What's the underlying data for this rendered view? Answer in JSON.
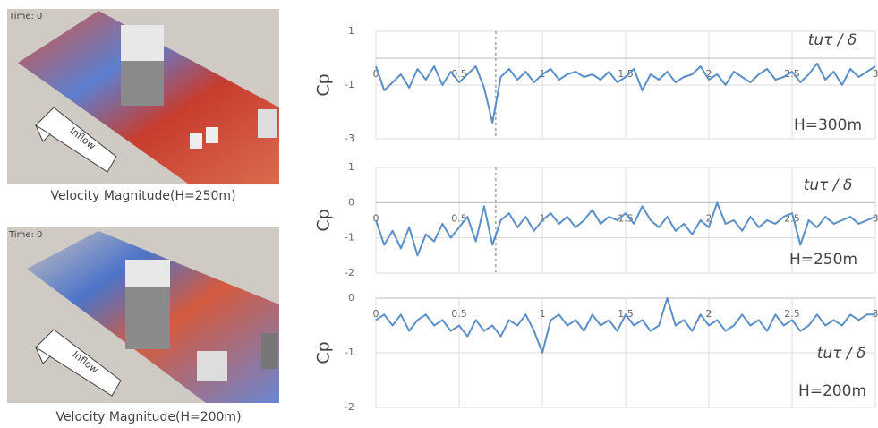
{
  "images": [
    {
      "time_label": "Time: 0",
      "arrow_label": "Inflow",
      "caption": "Velocity Magnitude(H=250m)"
    },
    {
      "time_label": "Time: 0",
      "arrow_label": "Inflow",
      "caption": "Velocity Magnitude(H=200m)"
    }
  ],
  "chart_data": [
    {
      "type": "line",
      "y_label": "Cp",
      "x_label": "tuτ / δ",
      "annotation": "H=300m",
      "color": "#5b8fc7",
      "grid": true,
      "xlim": [
        0,
        3
      ],
      "xticks": [
        0,
        0.5,
        1,
        1.5,
        2,
        2.5,
        3
      ],
      "ylim": [
        -3,
        1
      ],
      "yticks": [
        1,
        -1,
        -3
      ],
      "vline": 0.72,
      "x": [
        0,
        0.05,
        0.1,
        0.15,
        0.2,
        0.25,
        0.3,
        0.35,
        0.4,
        0.45,
        0.5,
        0.55,
        0.6,
        0.65,
        0.7,
        0.75,
        0.8,
        0.85,
        0.9,
        0.95,
        1,
        1.05,
        1.1,
        1.15,
        1.2,
        1.25,
        1.3,
        1.35,
        1.4,
        1.45,
        1.5,
        1.55,
        1.6,
        1.65,
        1.7,
        1.75,
        1.8,
        1.85,
        1.9,
        1.95,
        2,
        2.05,
        2.1,
        2.15,
        2.2,
        2.25,
        2.3,
        2.35,
        2.4,
        2.45,
        2.5,
        2.55,
        2.6,
        2.65,
        2.7,
        2.75,
        2.8,
        2.85,
        2.9,
        2.95,
        3
      ],
      "values": [
        -0.3,
        -1.2,
        -0.9,
        -0.6,
        -1.1,
        -0.4,
        -0.8,
        -0.3,
        -1.0,
        -0.5,
        -0.9,
        -0.6,
        -0.3,
        -1.1,
        -2.4,
        -0.7,
        -0.4,
        -0.8,
        -0.5,
        -0.9,
        -0.6,
        -0.4,
        -0.8,
        -0.6,
        -0.5,
        -0.7,
        -0.6,
        -0.8,
        -0.5,
        -0.9,
        -0.7,
        -0.4,
        -1.2,
        -0.6,
        -0.8,
        -0.5,
        -0.9,
        -0.7,
        -0.6,
        -0.3,
        -0.8,
        -0.6,
        -1.0,
        -0.5,
        -0.7,
        -0.9,
        -0.6,
        -0.4,
        -0.8,
        -0.7,
        -0.5,
        -0.9,
        -0.6,
        -0.2,
        -0.8,
        -0.5,
        -1.0,
        -0.4,
        -0.7,
        -0.5,
        -0.3
      ]
    },
    {
      "type": "line",
      "y_label": "Cp",
      "x_label": "tuτ / δ",
      "annotation": "H=250m",
      "color": "#5b8fc7",
      "grid": true,
      "xlim": [
        0,
        3
      ],
      "xticks": [
        0,
        0.5,
        1,
        1.5,
        2,
        2.5,
        3
      ],
      "ylim": [
        -2,
        1
      ],
      "yticks": [
        1,
        0,
        -1,
        -2
      ],
      "vline": 0.72,
      "x": [
        0,
        0.05,
        0.1,
        0.15,
        0.2,
        0.25,
        0.3,
        0.35,
        0.4,
        0.45,
        0.5,
        0.55,
        0.6,
        0.65,
        0.7,
        0.75,
        0.8,
        0.85,
        0.9,
        0.95,
        1,
        1.05,
        1.1,
        1.15,
        1.2,
        1.25,
        1.3,
        1.35,
        1.4,
        1.45,
        1.5,
        1.55,
        1.6,
        1.65,
        1.7,
        1.75,
        1.8,
        1.85,
        1.9,
        1.95,
        2,
        2.05,
        2.1,
        2.15,
        2.2,
        2.25,
        2.3,
        2.35,
        2.4,
        2.45,
        2.5,
        2.55,
        2.6,
        2.65,
        2.7,
        2.75,
        2.8,
        2.85,
        2.9,
        2.95,
        3
      ],
      "values": [
        -0.5,
        -1.2,
        -0.8,
        -1.3,
        -0.7,
        -1.5,
        -0.9,
        -1.1,
        -0.6,
        -1.0,
        -0.7,
        -0.4,
        -1.1,
        -0.1,
        -1.2,
        -0.5,
        -0.3,
        -0.7,
        -0.4,
        -0.8,
        -0.5,
        -0.3,
        -0.6,
        -0.4,
        -0.7,
        -0.5,
        -0.2,
        -0.6,
        -0.4,
        -0.5,
        -0.3,
        -0.6,
        -0.1,
        -0.5,
        -0.7,
        -0.4,
        -0.8,
        -0.6,
        -0.9,
        -0.5,
        -0.7,
        0.0,
        -0.6,
        -0.5,
        -0.8,
        -0.4,
        -0.7,
        -0.5,
        -0.6,
        -0.4,
        -0.3,
        -1.2,
        -0.5,
        -0.7,
        -0.4,
        -0.6,
        -0.5,
        -0.4,
        -0.6,
        -0.5,
        -0.4
      ]
    },
    {
      "type": "line",
      "y_label": "Cp",
      "x_label": "tuτ / δ",
      "annotation": "H=200m",
      "color": "#5b8fc7",
      "grid": true,
      "xlim": [
        0,
        3
      ],
      "xticks": [
        0,
        0.5,
        1,
        1.5,
        2,
        2.5,
        3
      ],
      "ylim": [
        -2,
        0
      ],
      "yticks": [
        0,
        -1,
        -2
      ],
      "x": [
        0,
        0.05,
        0.1,
        0.15,
        0.2,
        0.25,
        0.3,
        0.35,
        0.4,
        0.45,
        0.5,
        0.55,
        0.6,
        0.65,
        0.7,
        0.75,
        0.8,
        0.85,
        0.9,
        0.95,
        1,
        1.05,
        1.1,
        1.15,
        1.2,
        1.25,
        1.3,
        1.35,
        1.4,
        1.45,
        1.5,
        1.55,
        1.6,
        1.65,
        1.7,
        1.75,
        1.8,
        1.85,
        1.9,
        1.95,
        2,
        2.05,
        2.1,
        2.15,
        2.2,
        2.25,
        2.3,
        2.35,
        2.4,
        2.45,
        2.5,
        2.55,
        2.6,
        2.65,
        2.7,
        2.75,
        2.8,
        2.85,
        2.9,
        2.95,
        3
      ],
      "values": [
        -0.4,
        -0.3,
        -0.5,
        -0.3,
        -0.6,
        -0.4,
        -0.3,
        -0.5,
        -0.4,
        -0.6,
        -0.5,
        -0.7,
        -0.4,
        -0.6,
        -0.5,
        -0.7,
        -0.4,
        -0.5,
        -0.3,
        -0.6,
        -1.0,
        -0.4,
        -0.3,
        -0.5,
        -0.4,
        -0.6,
        -0.3,
        -0.5,
        -0.4,
        -0.6,
        -0.3,
        -0.5,
        -0.4,
        -0.6,
        -0.5,
        0.0,
        -0.5,
        -0.4,
        -0.6,
        -0.3,
        -0.5,
        -0.4,
        -0.6,
        -0.5,
        -0.3,
        -0.5,
        -0.4,
        -0.6,
        -0.3,
        -0.5,
        -0.4,
        -0.6,
        -0.5,
        -0.3,
        -0.5,
        -0.4,
        -0.5,
        -0.3,
        -0.4,
        -0.3,
        -0.3
      ]
    }
  ]
}
